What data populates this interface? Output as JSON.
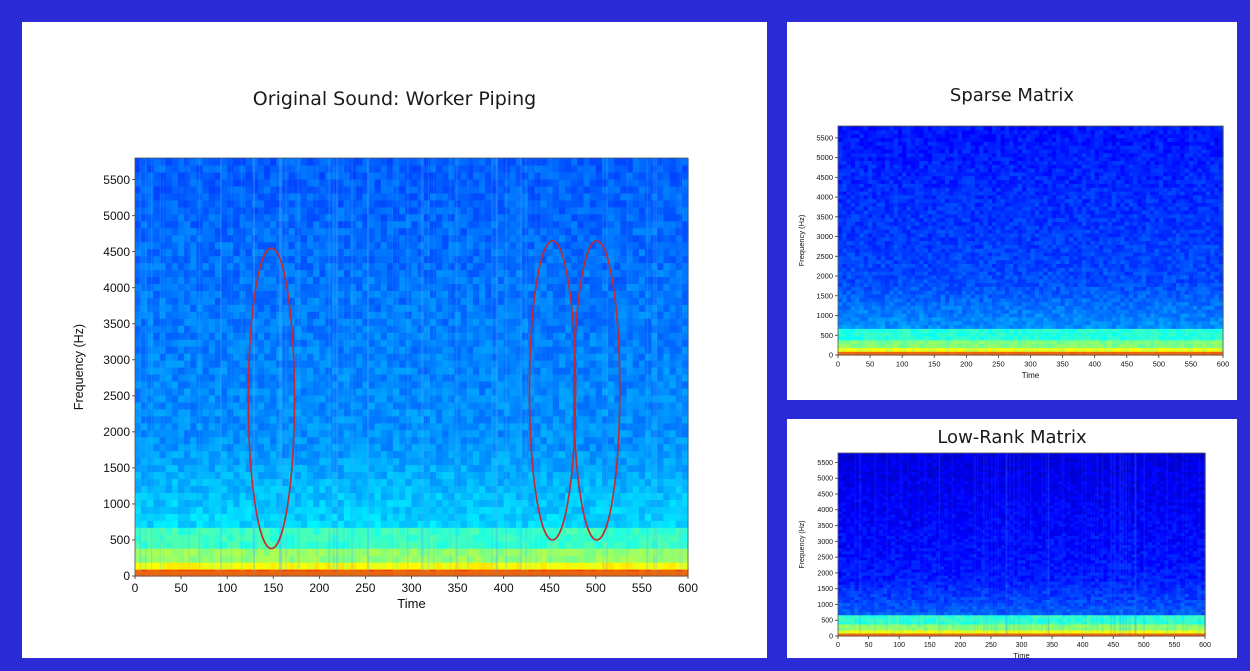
{
  "chart_data": [
    {
      "id": "main",
      "type": "heatmap",
      "title": "Original Sound: Worker Piping",
      "xlabel": "Time",
      "ylabel": "Frequency (Hz)",
      "xlim": [
        0,
        600
      ],
      "ylim": [
        0,
        5800
      ],
      "xticks": [
        0,
        50,
        100,
        150,
        200,
        250,
        300,
        350,
        400,
        450,
        500,
        550,
        600
      ],
      "yticks": [
        0,
        500,
        1000,
        1500,
        2000,
        2500,
        3000,
        3500,
        4000,
        4500,
        5000,
        5500
      ],
      "colormap": "jet",
      "annotations": [
        {
          "type": "ellipse",
          "color": "#c8282d",
          "x_center": 148,
          "x_halfwidth": 25,
          "y_min": 380,
          "y_max": 4550
        },
        {
          "type": "ellipse",
          "color": "#c8282d",
          "x_center": 453,
          "x_halfwidth": 25,
          "y_min": 500,
          "y_max": 4650
        },
        {
          "type": "ellipse",
          "color": "#c8282d",
          "x_center": 501,
          "x_halfwidth": 25,
          "y_min": 500,
          "y_max": 4650
        }
      ]
    },
    {
      "id": "sparse",
      "type": "heatmap",
      "title": "Sparse Matrix",
      "xlabel": "Time",
      "ylabel": "Frequency (Hz)",
      "xlim": [
        0,
        600
      ],
      "ylim": [
        0,
        5800
      ],
      "xticks": [
        0,
        50,
        100,
        150,
        200,
        250,
        300,
        350,
        400,
        450,
        500,
        550,
        600
      ],
      "yticks": [
        0,
        500,
        1000,
        1500,
        2000,
        2500,
        3000,
        3500,
        4000,
        4500,
        5000,
        5500
      ],
      "colormap": "jet"
    },
    {
      "id": "lowrank",
      "type": "heatmap",
      "title": "Low-Rank Matrix",
      "xlabel": "Time",
      "ylabel": "Frequency (Hz)",
      "xlim": [
        0,
        600
      ],
      "ylim": [
        0,
        5800
      ],
      "xticks": [
        0,
        50,
        100,
        150,
        200,
        250,
        300,
        350,
        400,
        450,
        500,
        550,
        600
      ],
      "yticks": [
        0,
        500,
        1000,
        1500,
        2000,
        2500,
        3000,
        3500,
        4000,
        4500,
        5000,
        5500
      ],
      "colormap": "jet"
    }
  ]
}
